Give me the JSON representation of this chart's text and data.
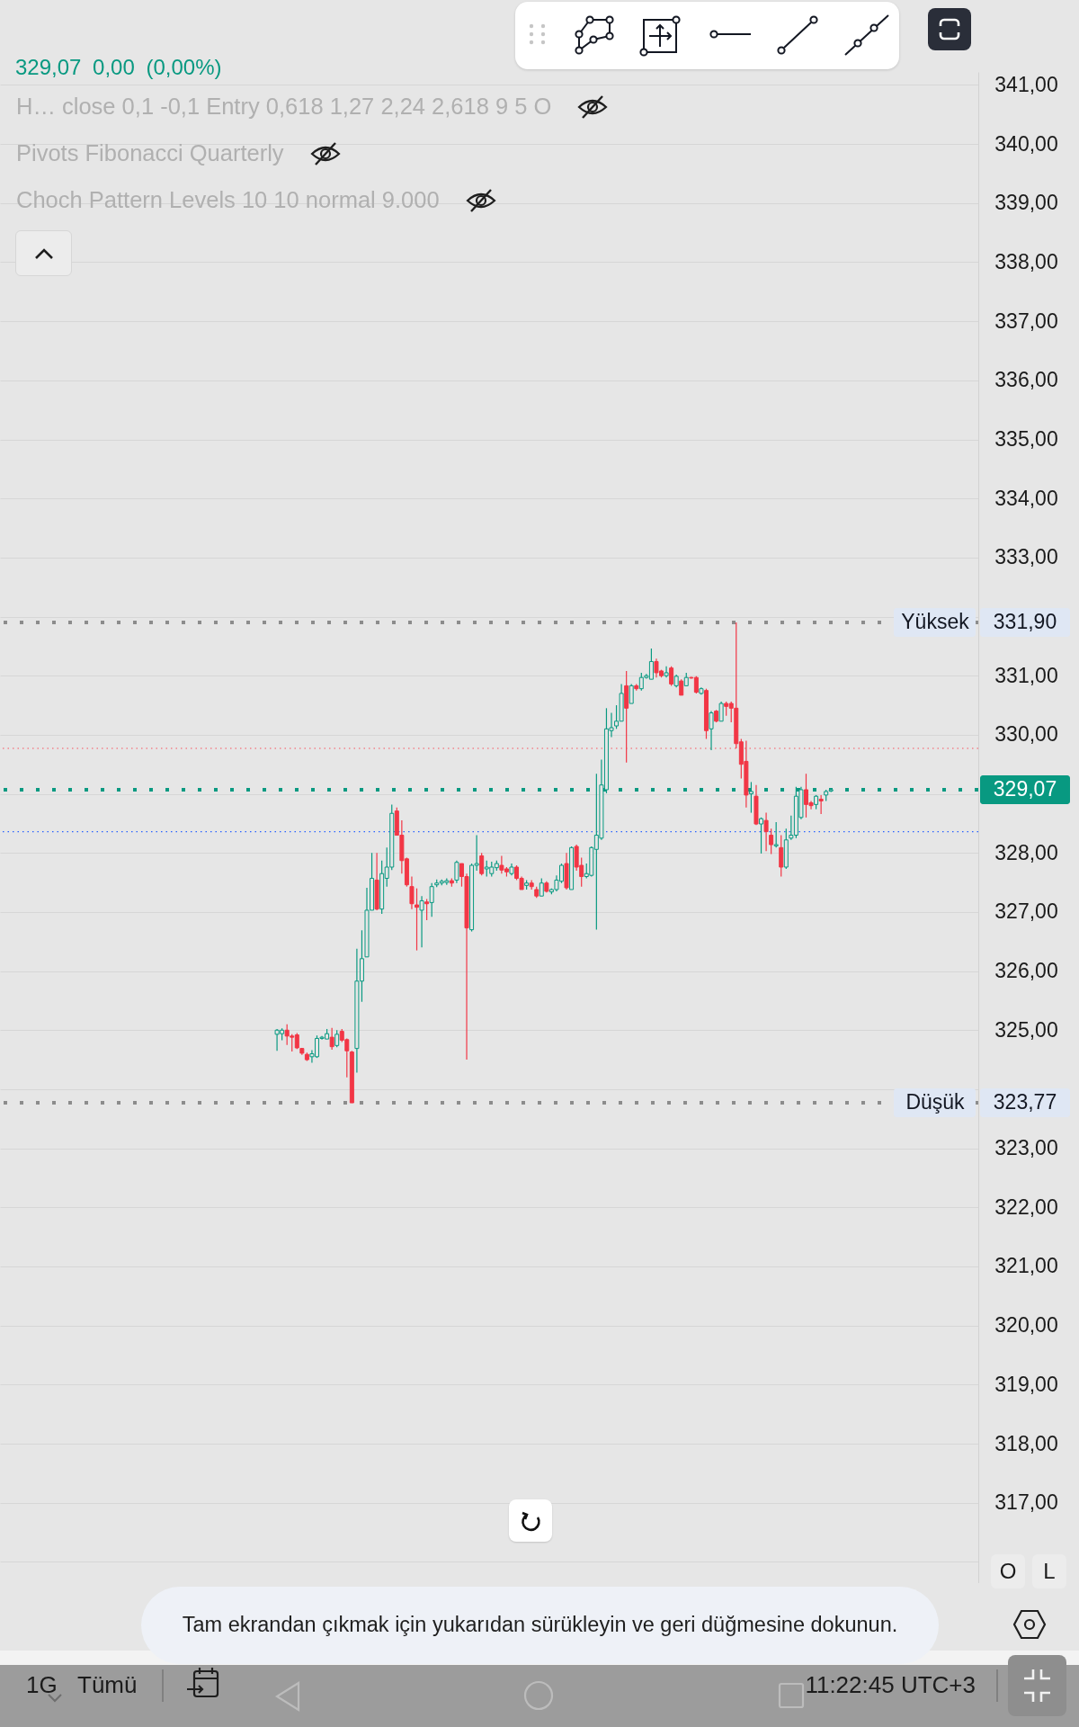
{
  "chart_data": {
    "type": "candlestick",
    "subtitle": "329,07 0,00 (0,00%)",
    "categories": [
      null,
      null,
      null,
      null,
      null,
      null,
      null,
      null,
      null,
      null,
      null,
      null,
      null,
      null,
      null,
      null,
      null,
      null,
      null,
      null,
      null,
      null,
      null,
      null,
      null,
      null,
      null,
      null,
      null,
      null,
      null,
      null,
      null,
      null,
      null,
      null,
      null,
      null,
      null,
      null,
      null,
      null,
      null,
      null,
      null,
      null,
      null,
      null,
      null,
      null,
      null,
      null,
      null,
      null,
      null,
      null,
      null,
      null,
      null,
      null,
      null,
      null,
      null,
      null,
      null,
      null,
      null,
      null,
      null,
      null,
      null,
      null,
      null,
      null,
      null,
      null,
      null,
      null,
      null,
      null,
      null,
      null,
      null,
      null,
      null,
      null,
      null,
      null,
      null,
      null,
      null,
      null,
      null,
      null,
      null,
      null,
      null,
      null,
      null,
      null,
      null,
      null,
      null,
      null,
      null,
      null,
      null,
      null,
      null,
      null,
      null,
      null,
      null,
      null,
      null,
      null,
      null,
      null,
      null,
      null,
      null,
      null,
      null,
      null,
      null,
      null,
      null,
      null,
      null,
      null,
      null,
      null,
      null,
      null,
      null,
      null,
      null,
      null,
      null,
      null,
      null,
      null,
      null,
      null,
      null,
      null,
      null,
      null,
      null,
      null,
      null,
      null,
      null,
      null,
      null,
      null,
      null,
      null,
      null,
      null,
      null,
      null,
      null,
      null,
      null,
      null,
      null,
      null,
      null,
      null,
      null,
      null,
      null,
      null,
      null,
      null,
      null,
      null,
      null,
      null,
      null,
      null,
      null,
      null,
      null,
      null,
      null,
      null,
      null,
      null,
      null,
      null,
      null,
      null,
      null,
      null
    ],
    "ohlc": [
      null,
      null,
      null,
      null,
      null,
      null,
      null,
      null,
      null,
      null,
      null,
      null,
      null,
      null,
      null,
      null,
      null,
      null,
      null,
      null,
      null,
      null,
      null,
      null,
      null,
      null,
      null,
      null,
      null,
      null,
      null,
      null,
      null,
      null,
      null,
      null,
      null,
      null,
      null,
      null,
      null,
      null,
      null,
      null,
      null,
      null,
      null,
      null,
      null,
      null,
      null,
      null,
      null,
      null,
      null,
      [
        324.93,
        325.02,
        324.65,
        325.0
      ],
      [
        324.94,
        325.03,
        324.83,
        325.0
      ],
      [
        325.0,
        325.1,
        324.75,
        324.9
      ],
      [
        324.9,
        324.93,
        324.64,
        324.88
      ],
      [
        324.92,
        324.95,
        324.68,
        324.7
      ],
      [
        324.69,
        324.7,
        324.58,
        324.61
      ],
      [
        324.59,
        324.62,
        324.48,
        324.5
      ],
      [
        324.55,
        324.66,
        324.45,
        324.6
      ],
      [
        324.55,
        324.91,
        324.53,
        324.86
      ],
      [
        324.86,
        324.9,
        324.84,
        324.88
      ],
      [
        324.85,
        325.02,
        324.85,
        324.94
      ],
      [
        324.88,
        325.04,
        324.67,
        324.72
      ],
      [
        324.74,
        325.0,
        324.71,
        324.93
      ],
      [
        324.98,
        325.02,
        324.8,
        324.83
      ],
      [
        324.84,
        324.86,
        324.2,
        324.65
      ],
      [
        324.63,
        324.65,
        323.77,
        323.77
      ],
      [
        324.69,
        326.38,
        324.28,
        325.83
      ],
      [
        325.83,
        326.69,
        325.48,
        326.21
      ],
      [
        326.24,
        327.41,
        326.24,
        327.03
      ],
      [
        327.03,
        328.0,
        327.03,
        327.57
      ],
      [
        327.54,
        328.0,
        327.03,
        327.05
      ],
      [
        327.05,
        327.87,
        326.97,
        327.65
      ],
      [
        327.57,
        328.09,
        327.43,
        327.76
      ],
      [
        327.76,
        328.82,
        327.71,
        328.67
      ],
      [
        328.71,
        328.77,
        328.3,
        328.3
      ],
      [
        328.3,
        328.55,
        327.65,
        327.87
      ],
      [
        327.9,
        327.92,
        327.43,
        327.46
      ],
      [
        327.43,
        327.6,
        327.05,
        327.14
      ],
      [
        327.12,
        327.4,
        326.35,
        327.08
      ],
      [
        327.03,
        327.27,
        326.4,
        327.19
      ],
      [
        327.17,
        327.22,
        326.86,
        327.14
      ],
      [
        327.16,
        327.49,
        326.92,
        327.43
      ],
      [
        327.46,
        327.55,
        327.42,
        327.49
      ],
      [
        327.49,
        327.55,
        327.45,
        327.52
      ],
      [
        327.5,
        327.57,
        327.46,
        327.53
      ],
      [
        327.53,
        327.57,
        327.43,
        327.49
      ],
      [
        327.54,
        327.87,
        327.49,
        327.84
      ],
      [
        327.82,
        327.82,
        327.43,
        327.6
      ],
      [
        327.6,
        327.65,
        324.5,
        326.73
      ],
      [
        326.7,
        327.82,
        326.67,
        327.79
      ],
      [
        327.79,
        328.3,
        327.7,
        327.82
      ],
      [
        327.95,
        328.0,
        327.62,
        327.65
      ],
      [
        327.73,
        327.87,
        327.6,
        327.76
      ],
      [
        327.65,
        327.85,
        327.6,
        327.76
      ],
      [
        327.75,
        327.87,
        327.7,
        327.82
      ],
      [
        327.79,
        327.95,
        327.65,
        327.71
      ],
      [
        327.73,
        327.76,
        327.6,
        327.68
      ],
      [
        327.65,
        327.82,
        327.62,
        327.76
      ],
      [
        327.76,
        327.79,
        327.54,
        327.57
      ],
      [
        327.57,
        327.6,
        327.38,
        327.38
      ],
      [
        327.45,
        327.54,
        327.38,
        327.49
      ],
      [
        327.49,
        327.54,
        327.38,
        327.43
      ],
      [
        327.38,
        327.43,
        327.24,
        327.27
      ],
      [
        327.27,
        327.57,
        327.27,
        327.49
      ],
      [
        327.49,
        327.52,
        327.33,
        327.35
      ],
      [
        327.34,
        327.4,
        327.3,
        327.38
      ],
      [
        327.38,
        327.62,
        327.35,
        327.54
      ],
      [
        327.52,
        327.82,
        327.49,
        327.79
      ],
      [
        327.82,
        328.0,
        327.38,
        327.41
      ],
      [
        327.38,
        328.11,
        327.38,
        328.09
      ],
      [
        328.11,
        328.14,
        327.7,
        327.76
      ],
      [
        327.79,
        327.92,
        327.43,
        327.6
      ],
      [
        327.6,
        327.82,
        327.57,
        327.65
      ],
      [
        327.62,
        328.11,
        327.6,
        328.09
      ],
      [
        328.06,
        329.34,
        326.7,
        328.3
      ],
      [
        328.25,
        329.58,
        328.22,
        329.15
      ],
      [
        329.07,
        330.45,
        329.01,
        330.1
      ],
      [
        330.07,
        330.37,
        329.96,
        330.12
      ],
      [
        330.15,
        330.5,
        330.1,
        330.23
      ],
      [
        330.23,
        330.86,
        330.23,
        330.7
      ],
      [
        330.83,
        331.08,
        329.53,
        330.45
      ],
      [
        330.53,
        330.86,
        330.53,
        330.83
      ],
      [
        330.83,
        330.86,
        330.75,
        330.78
      ],
      [
        330.78,
        331.05,
        330.75,
        330.97
      ],
      [
        330.97,
        331.03,
        330.95,
        331.0
      ],
      [
        330.94,
        331.46,
        330.94,
        331.24
      ],
      [
        331.24,
        331.29,
        330.97,
        331.05
      ],
      [
        331.08,
        331.1,
        330.97,
        331.0
      ],
      [
        331.0,
        331.16,
        330.97,
        331.05
      ],
      [
        331.13,
        331.16,
        330.83,
        330.86
      ],
      [
        330.83,
        331.02,
        330.8,
        330.99
      ],
      [
        330.91,
        330.94,
        330.67,
        330.67
      ],
      [
        330.83,
        331.05,
        330.83,
        330.97
      ],
      [
        330.97,
        330.98,
        330.95,
        330.96
      ],
      [
        330.97,
        330.99,
        330.7,
        330.72
      ],
      [
        330.7,
        330.8,
        330.68,
        330.78
      ],
      [
        330.75,
        330.78,
        329.93,
        330.07
      ],
      [
        330.1,
        330.4,
        329.74,
        330.37
      ],
      [
        330.4,
        330.42,
        330.21,
        330.23
      ],
      [
        330.23,
        330.56,
        330.23,
        330.53
      ],
      [
        330.53,
        330.56,
        330.32,
        330.48
      ],
      [
        330.53,
        330.56,
        330.21,
        330.45
      ],
      [
        330.45,
        331.9,
        329.77,
        329.85
      ],
      [
        329.88,
        329.93,
        329.26,
        329.5
      ],
      [
        329.55,
        329.9,
        328.77,
        328.98
      ],
      [
        329.0,
        329.2,
        328.68,
        329.04
      ],
      [
        328.96,
        329.15,
        328.47,
        328.49
      ],
      [
        328.49,
        328.6,
        327.99,
        328.58
      ],
      [
        328.55,
        328.68,
        328.03,
        328.36
      ],
      [
        328.3,
        328.41,
        327.98,
        328.14
      ],
      [
        328.12,
        328.52,
        328.09,
        328.14
      ],
      [
        328.09,
        328.3,
        327.6,
        327.76
      ],
      [
        327.76,
        328.41,
        327.73,
        328.22
      ],
      [
        328.25,
        328.63,
        328.22,
        328.3
      ],
      [
        328.3,
        329.12,
        328.25,
        328.96
      ],
      [
        328.6,
        329.12,
        328.57,
        329.07
      ],
      [
        329.07,
        329.34,
        328.6,
        328.82
      ],
      [
        328.85,
        328.88,
        328.74,
        328.8
      ],
      [
        328.82,
        328.98,
        328.74,
        328.96
      ],
      [
        328.91,
        328.98,
        328.66,
        328.88
      ],
      [
        328.98,
        329.07,
        328.88,
        329.04
      ],
      [
        329.05,
        329.1,
        329.03,
        329.07
      ],
      null,
      null,
      null,
      null,
      null,
      null,
      null,
      null,
      null,
      null,
      null,
      null,
      null,
      null,
      null,
      null,
      null,
      null,
      null,
      null,
      null,
      null,
      null,
      null,
      null,
      null,
      null,
      null,
      null
    ],
    "colors": [
      null,
      null,
      null,
      null,
      null,
      null,
      null,
      null,
      null,
      null,
      null,
      null,
      null,
      null,
      null,
      null,
      null,
      null,
      null,
      null,
      null,
      null,
      null,
      null,
      null,
      null,
      null,
      null,
      null,
      null,
      null,
      null,
      null,
      null,
      null,
      null,
      null,
      null,
      null,
      null,
      null,
      null,
      null,
      null,
      null,
      null,
      null,
      null,
      null,
      null,
      null,
      null,
      null,
      null,
      null,
      "#089981",
      "#089981",
      "#f23645",
      "#f23645",
      "#f23645",
      "#f23645",
      "#f23645",
      "#089981",
      "#089981",
      "#089981",
      "#089981",
      "#f23645",
      "#089981",
      "#f23645",
      "#f23645",
      "#f23645",
      "#089981",
      "#089981",
      "#089981",
      "#089981",
      "#f23645",
      "#089981",
      "#089981",
      "#089981",
      "#f23645",
      "#f23645",
      "#f23645",
      "#f23645",
      "#f23645",
      "#089981",
      "#f23645",
      "#089981",
      "#089981",
      "#089981",
      "#089981",
      "#f23645",
      "#089981",
      "#f23645",
      "#f23645",
      "#089981",
      "#089981",
      "#f23645",
      "#089981",
      "#089981",
      "#089981",
      "#f23645",
      "#f23645",
      "#089981",
      "#f23645",
      "#f23645",
      "#089981",
      "#f23645",
      "#f23645",
      "#089981",
      "#f23645",
      "#089981",
      "#089981",
      "#089981",
      "#f23645",
      "#089981",
      "#f23645",
      "#f23645",
      "#089981",
      "#089981",
      "#089981",
      "#089981",
      "#089981",
      "#089981",
      "#089981",
      "#089981",
      "#f23645",
      "#089981",
      "#f23645",
      "#089981",
      "#089981",
      "#089981",
      "#f23645",
      "#f23645",
      "#089981",
      "#f23645",
      "#089981",
      "#f23645",
      "#089981",
      "#f23645",
      "#f23645",
      "#089981",
      "#f23645",
      "#089981",
      "#f23645",
      "#089981",
      "#f23645",
      "#f23645",
      "#f23645",
      "#f23645",
      "#f23645",
      "#089981",
      "#f23645",
      "#089981",
      "#f23645",
      "#f23645",
      "#089981",
      "#f23645",
      "#089981",
      "#089981",
      "#089981",
      "#089981",
      "#f23645",
      "#f23645",
      "#089981",
      "#f23645",
      "#089981",
      "#089981",
      null,
      null,
      null,
      null,
      null,
      null,
      null,
      null,
      null,
      null,
      null,
      null,
      null,
      null,
      null,
      null,
      null,
      null,
      null,
      null,
      null,
      null,
      null,
      null,
      null,
      null,
      null,
      null,
      null
    ],
    "ylim": [
      315.64,
      341.22
    ],
    "yticks": [
      {
        "value": 316,
        "label": null
      },
      {
        "value": 317,
        "label": "317,00"
      },
      {
        "value": 318,
        "label": "318,00"
      },
      {
        "value": 319,
        "label": "319,00"
      },
      {
        "value": 320,
        "label": "320,00"
      },
      {
        "value": 321,
        "label": "321,00"
      },
      {
        "value": 322,
        "label": "322,00"
      },
      {
        "value": 323,
        "label": "323,00"
      },
      {
        "value": 324,
        "label": null
      },
      {
        "value": 325,
        "label": "325,00"
      },
      {
        "value": 326,
        "label": "326,00"
      },
      {
        "value": 327,
        "label": "327,00"
      },
      {
        "value": 328,
        "label": "328,00"
      },
      {
        "value": 329,
        "label": null
      },
      {
        "value": 330,
        "label": "330,00"
      },
      {
        "value": 331,
        "label": "331,00"
      },
      {
        "value": 332,
        "label": null
      },
      {
        "value": 333,
        "label": "333,00"
      },
      {
        "value": 334,
        "label": "334,00"
      },
      {
        "value": 335,
        "label": "335,00"
      },
      {
        "value": 336,
        "label": "336,00"
      },
      {
        "value": 337,
        "label": "337,00"
      },
      {
        "value": 338,
        "label": "338,00"
      },
      {
        "value": 339,
        "label": "339,00"
      },
      {
        "value": 340,
        "label": "340,00"
      },
      {
        "value": 341,
        "label": "341,00"
      }
    ],
    "grid": "y",
    "ref_lines": [
      {
        "axis": "y",
        "value": 331.9,
        "label": "331,90",
        "color": "#8c8c8c",
        "line_style": "dotted"
      },
      {
        "axis": "y",
        "value": 323.77,
        "label": "323,77",
        "color": "#8c8c8c",
        "line_style": "dotted"
      },
      {
        "axis": "y",
        "value": 329.07,
        "label": "329,07",
        "color": "#089981",
        "line_style": "dotted"
      },
      {
        "axis": "y",
        "value": 329.77,
        "color": "#f7525f",
        "line_style": "dotted"
      },
      {
        "axis": "y",
        "value": 328.36,
        "color": "#2962ff",
        "line_style": "dotted"
      }
    ],
    "annotations": [
      {
        "text": "Yüksek",
        "y": 331.9
      },
      {
        "text": "Düşük",
        "y": 323.77
      },
      "H… close 0,1 -0,1 Entry 0,618 1,27 2,24 2,618 9 5 O",
      "Pivots Fibonacci Quarterly",
      "Choch Pattern Levels 10 10 normal 9.000",
      "O",
      "L",
      "Tam ekrandan çıkmak için yukarıdan sürükleyin ve geri düğmesine dokunun.",
      "1G",
      "Tümü",
      "11:22:45 UTC+3"
    ]
  }
}
